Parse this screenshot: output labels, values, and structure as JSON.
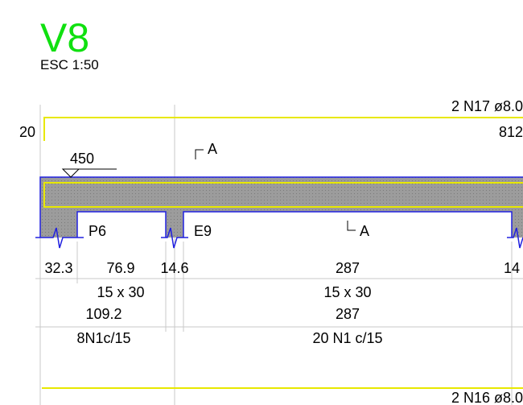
{
  "title": "V8",
  "scale": "ESC 1:50",
  "top_rebar": {
    "label": "2 N17 ø8.0",
    "left_hook": "20",
    "length": "812"
  },
  "section_marks": [
    "A",
    "A"
  ],
  "level": "450",
  "supports": [
    "P6",
    "E9"
  ],
  "spans": [
    "32.3",
    "76.9",
    "14.6",
    "287",
    "14"
  ],
  "sections": [
    "15 x 30",
    "15 x 30"
  ],
  "totals": [
    "109.2",
    "287"
  ],
  "stirrups": [
    "8N1c/15",
    "20 N1 c/15"
  ],
  "bottom_rebar": {
    "label": "2 N16 ø8.0"
  }
}
